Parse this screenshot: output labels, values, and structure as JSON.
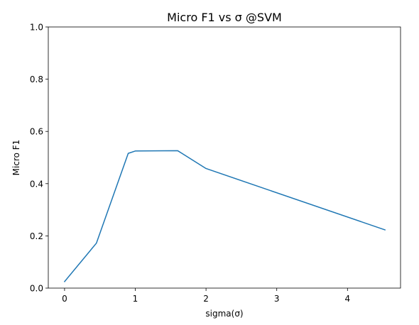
{
  "chart_data": {
    "type": "line",
    "title": "Micro F1 vs σ @SVM",
    "xlabel": "sigma(σ)",
    "ylabel": "Micro F1",
    "xlim": [
      -0.23,
      4.75
    ],
    "ylim": [
      0.0,
      1.0
    ],
    "xticks": [
      0,
      1,
      2,
      3,
      4
    ],
    "xtick_labels": [
      "0",
      "1",
      "2",
      "3",
      "4"
    ],
    "yticks": [
      0.0,
      0.2,
      0.4,
      0.6,
      0.8,
      1.0
    ],
    "ytick_labels": [
      "0.0",
      "0.2",
      "0.4",
      "0.6",
      "0.8",
      "1.0"
    ],
    "grid": false,
    "series": [
      {
        "color": "#1f77b4",
        "x": [
          0.0,
          0.45,
          0.9,
          1.0,
          1.6,
          2.0,
          4.53
        ],
        "y": [
          0.025,
          0.172,
          0.516,
          0.525,
          0.526,
          0.458,
          0.223
        ]
      }
    ]
  }
}
